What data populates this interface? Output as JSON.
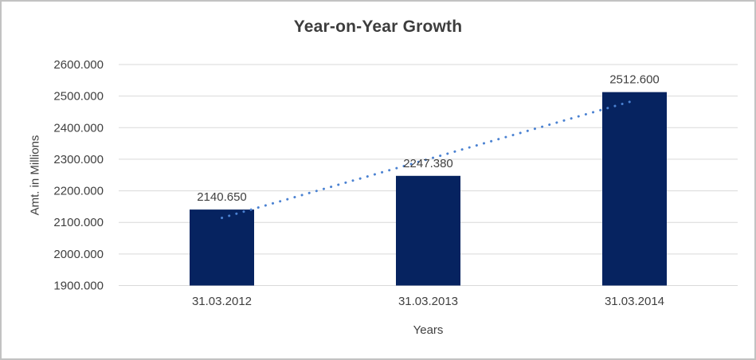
{
  "chart_data": {
    "type": "bar",
    "title": "Year-on-Year Growth",
    "xlabel": "Years",
    "ylabel": "Amt. in Millions",
    "categories": [
      "31.03.2012",
      "31.03.2013",
      "31.03.2014"
    ],
    "values": [
      2140.65,
      2247.38,
      2512.6
    ],
    "data_labels": [
      "2140.650",
      "2247.380",
      "2512.600"
    ],
    "ylim": [
      1900,
      2600
    ],
    "yticks": [
      {
        "value": 1900,
        "label": "1900.000"
      },
      {
        "value": 2000,
        "label": "2000.000"
      },
      {
        "value": 2100,
        "label": "2100.000"
      },
      {
        "value": 2200,
        "label": "2200.000"
      },
      {
        "value": 2300,
        "label": "2300.000"
      },
      {
        "value": 2400,
        "label": "2400.000"
      },
      {
        "value": 2500,
        "label": "2500.000"
      },
      {
        "value": 2600,
        "label": "2600.000"
      }
    ],
    "grid": true,
    "legend": "none",
    "trendline": {
      "type": "linear",
      "style": "dotted"
    },
    "colors": {
      "bar": "#062360",
      "trendline": "#4B82D2",
      "gridline": "#D9D9D9",
      "text": "#404040",
      "title": "#3D3D3D",
      "background": "#FFFFFF",
      "frame_border": "#C2C2C2"
    }
  }
}
